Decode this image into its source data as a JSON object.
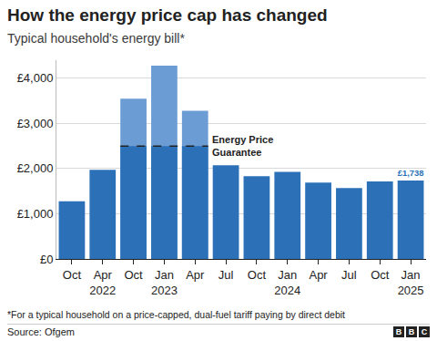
{
  "chart_data": {
    "type": "bar",
    "title": "How the energy price cap has changed",
    "subtitle": "Typical household's energy bill*",
    "categories": [
      "Oct",
      "Apr\n2022",
      "Oct",
      "Jan\n2023",
      "Apr",
      "Jul",
      "Oct",
      "Jan\n2024",
      "Apr",
      "Jul",
      "Oct",
      "Jan\n2025"
    ],
    "values": [
      1277,
      1971,
      3549,
      4279,
      3280,
      2074,
      1834,
      1928,
      1690,
      1568,
      1717,
      1738
    ],
    "value_labels": [
      null,
      null,
      null,
      null,
      null,
      null,
      null,
      null,
      null,
      null,
      null,
      "£1,738"
    ],
    "data_labels": true,
    "color": "#2c71b8",
    "guarantee": {
      "label": "Energy Price\nGuarantee",
      "value": 2500,
      "categories": [
        2,
        3,
        4
      ],
      "color": "#6b9dd4",
      "line_style": "dashed"
    },
    "ylim": [
      0,
      4400
    ],
    "yticks": [
      {
        "value": 0,
        "label": "£0"
      },
      {
        "value": 1000,
        "label": "£1,000"
      },
      {
        "value": 2000,
        "label": "£2,000"
      },
      {
        "value": 3000,
        "label": "£3,000"
      },
      {
        "value": 4000,
        "label": "£4,000"
      }
    ],
    "grid": true,
    "footnote": "*For a typical household on a price-capped, dual-fuel tariff paying by direct debit",
    "source": "Source: Ofgem",
    "logo": "BBC"
  }
}
